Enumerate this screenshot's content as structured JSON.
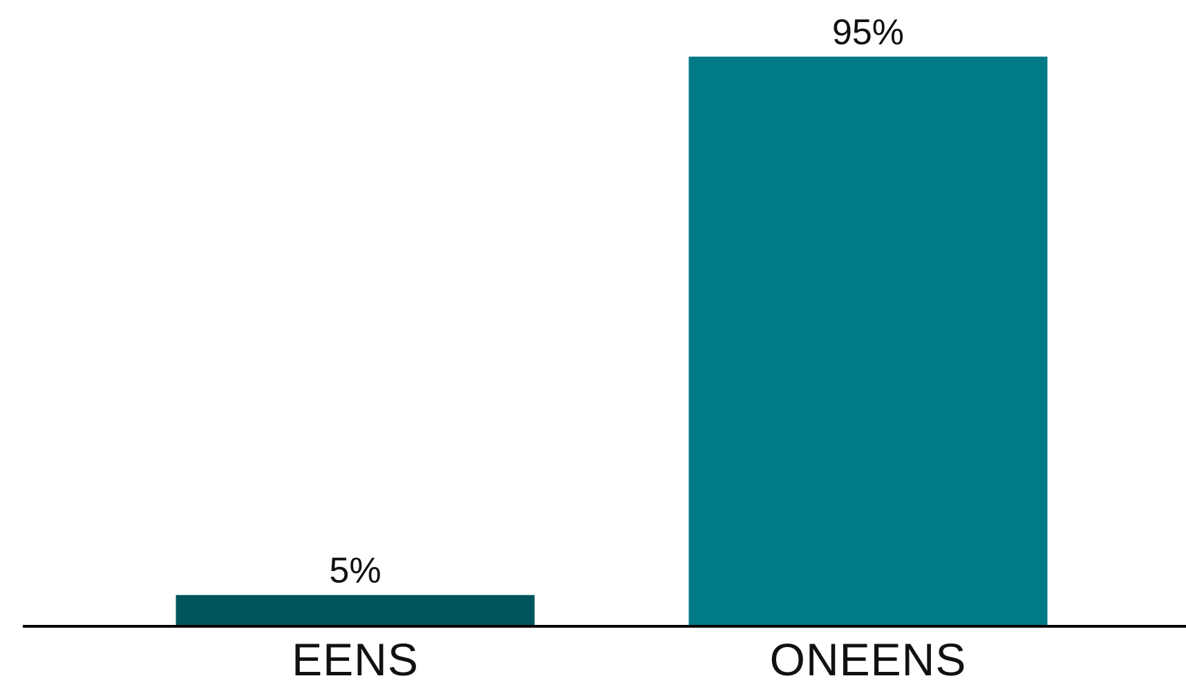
{
  "chart_data": {
    "type": "bar",
    "categories": [
      "EENS",
      "ONEENS"
    ],
    "values": [
      5,
      95
    ],
    "value_labels": [
      "5%",
      "95%"
    ],
    "ylim": [
      0,
      100
    ],
    "grid": false,
    "legend": "none",
    "colors": [
      "#00545C",
      "#007A87"
    ],
    "axis_color": "#000000"
  }
}
